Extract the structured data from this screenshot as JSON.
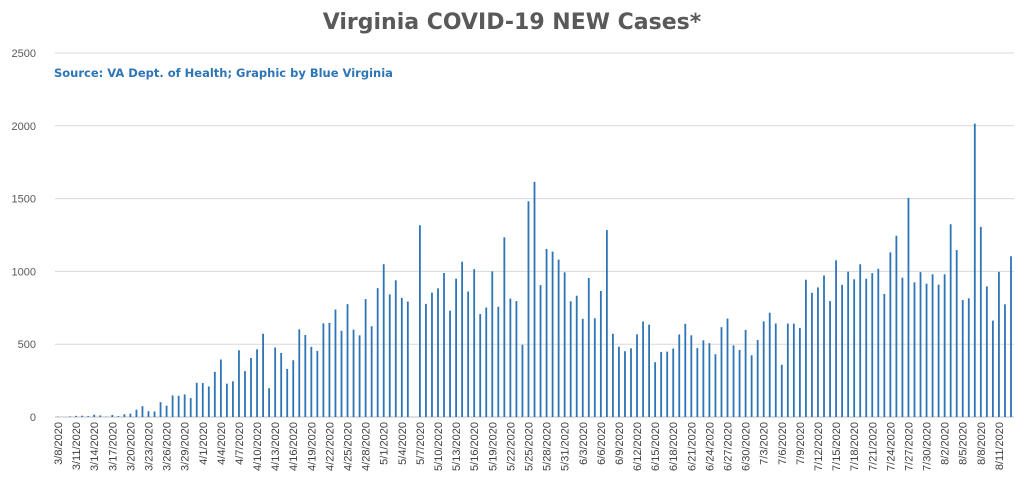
{
  "chart_data": {
    "type": "bar",
    "title": "Virginia COVID-19 NEW Cases*",
    "subtitle": "Source: VA Dept. of Health; Graphic by Blue Virginia",
    "xlabel": "",
    "ylabel": "",
    "ylim": [
      0,
      2500
    ],
    "yticks": [
      0,
      500,
      1000,
      1500,
      2000,
      2500
    ],
    "grid": true,
    "legend": "none",
    "bar_color": "#2E75B6",
    "tick_labels": [
      "3/8/2020",
      "3/11/2020",
      "3/14/2020",
      "3/17/2020",
      "3/20/2020",
      "3/23/2020",
      "3/26/2020",
      "3/29/2020",
      "4/1/2020",
      "4/4/2020",
      "4/7/2020",
      "4/10/2020",
      "4/13/2020",
      "4/16/2020",
      "4/19/2020",
      "4/22/2020",
      "4/25/2020",
      "4/28/2020",
      "5/1/2020",
      "5/4/2020",
      "5/7/2020",
      "5/10/2020",
      "5/13/2020",
      "5/16/2020",
      "5/19/2020",
      "5/22/2020",
      "5/25/2020",
      "5/28/2020",
      "5/31/2020",
      "6/3/2020",
      "6/6/2020",
      "6/9/2020",
      "6/12/2020",
      "6/15/2020",
      "6/18/2020",
      "6/21/2020",
      "6/24/2020",
      "6/27/2020",
      "6/30/2020",
      "7/3/2020",
      "7/6/2020",
      "7/9/2020",
      "7/12/2020",
      "7/15/2020",
      "7/18/2020",
      "7/21/2020",
      "7/24/2020",
      "7/27/2020",
      "7/30/2020",
      "8/2/2020",
      "8/5/2020",
      "8/8/2020",
      "8/11/2020"
    ],
    "start_label": "3/8/2020",
    "values": [
      2,
      0,
      4,
      8,
      9,
      6,
      16,
      11,
      2,
      14,
      6,
      19,
      23,
      50,
      74,
      40,
      38,
      102,
      78,
      148,
      146,
      155,
      130,
      235,
      233,
      210,
      310,
      395,
      229,
      245,
      458,
      315,
      405,
      465,
      572,
      198,
      477,
      440,
      330,
      390,
      602,
      563,
      482,
      454,
      643,
      646,
      738,
      592,
      775,
      600,
      561,
      810,
      623,
      885,
      1050,
      842,
      939,
      818,
      793,
      0,
      1317,
      777,
      854,
      884,
      989,
      730,
      950,
      1067,
      862,
      1015,
      707,
      752,
      1000,
      757,
      1234,
      813,
      796,
      496,
      1482,
      1615,
      906,
      1154,
      1136,
      1081,
      994,
      795,
      833,
      674,
      955,
      678,
      866,
      1284,
      572,
      483,
      452,
      472,
      568,
      656,
      634,
      376,
      447,
      449,
      470,
      567,
      640,
      561,
      473,
      527,
      507,
      431,
      617,
      676,
      492,
      460,
      598,
      424,
      529,
      657,
      716,
      642,
      359,
      642,
      641,
      612,
      943,
      853,
      890,
      972,
      796,
      1076,
      908,
      998,
      946,
      1049,
      950,
      988,
      1018,
      845,
      1131,
      1245,
      957,
      1505,
      925,
      995,
      916,
      980,
      909,
      980,
      1324,
      1147,
      803,
      815,
      2015,
      1306,
      897,
      662,
      997,
      774,
      1104
    ]
  }
}
